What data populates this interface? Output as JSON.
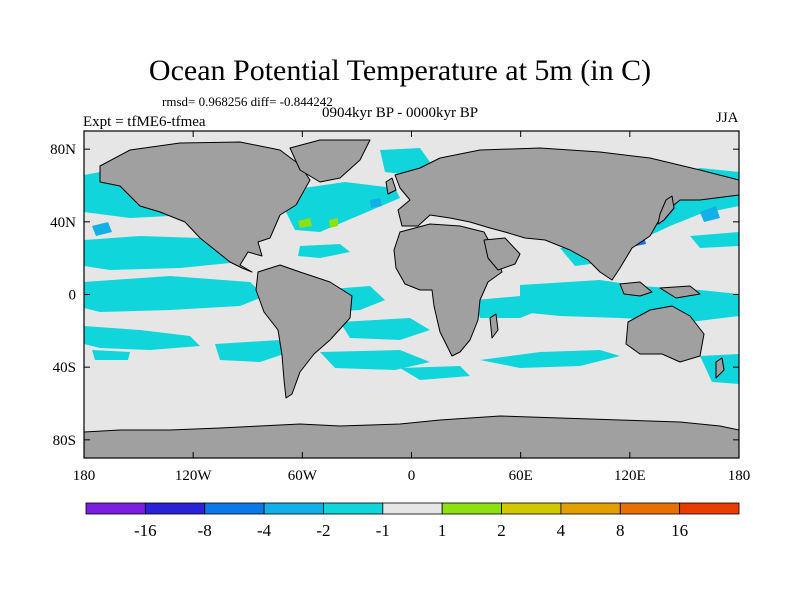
{
  "title": "Ocean Potential Temperature at 5m (in C)",
  "stats": "rmsd= 0.968256 diff= -0.844242",
  "period": "0904kyr BP - 0000kyr BP",
  "experiment": "Expt = tfME6-tfmea",
  "season": "JJA",
  "chart_data": {
    "type": "heatmap",
    "projection": "cylindrical-equidistant",
    "xlim": [
      -180,
      180
    ],
    "ylim": [
      -90,
      90
    ],
    "x_ticks": [
      {
        "value": -180,
        "label": "180"
      },
      {
        "value": -120,
        "label": "120W"
      },
      {
        "value": -60,
        "label": "60W"
      },
      {
        "value": 0,
        "label": "0"
      },
      {
        "value": 60,
        "label": "60E"
      },
      {
        "value": 120,
        "label": "120E"
      },
      {
        "value": 180,
        "label": "180"
      }
    ],
    "y_ticks": [
      {
        "value": 80,
        "label": "80N"
      },
      {
        "value": 40,
        "label": "40N"
      },
      {
        "value": 0,
        "label": "0"
      },
      {
        "value": -40,
        "label": "40S"
      },
      {
        "value": -80,
        "label": "80S"
      }
    ],
    "colorbar": {
      "boundaries": [
        "-16",
        "-8",
        "-4",
        "-2",
        "-1",
        "1",
        "2",
        "4",
        "8",
        "16"
      ],
      "colors": [
        "#7a1ee0",
        "#2a22d8",
        "#0a78e8",
        "#12b0e8",
        "#10d6dc",
        "#e6e6e6",
        "#8ee010",
        "#d2c800",
        "#e2a000",
        "#e87000",
        "#e83c00"
      ]
    },
    "land_color": "#a0a0a0",
    "background_class": "-1 to 1"
  }
}
